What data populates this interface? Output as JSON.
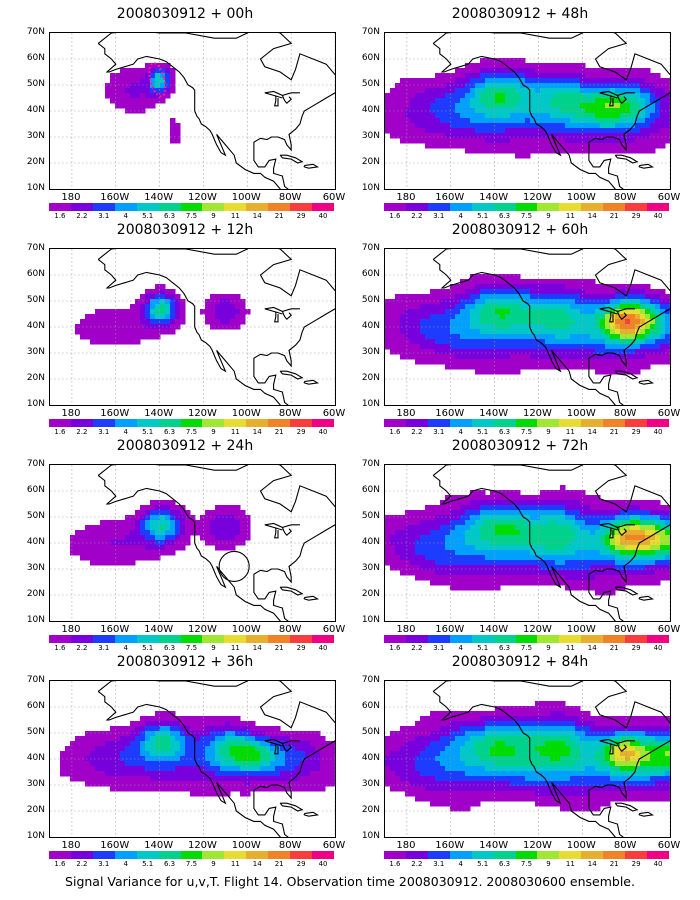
{
  "panels": [
    {
      "title": "2008030912 + 00h",
      "forecast_hour": 0
    },
    {
      "title": "2008030912 + 12h",
      "forecast_hour": 12
    },
    {
      "title": "2008030912 + 24h",
      "forecast_hour": 24
    },
    {
      "title": "2008030912 + 36h",
      "forecast_hour": 36
    },
    {
      "title": "2008030912 + 48h",
      "forecast_hour": 48
    },
    {
      "title": "2008030912 + 60h",
      "forecast_hour": 60
    },
    {
      "title": "2008030912 + 72h",
      "forecast_hour": 72
    },
    {
      "title": "2008030912 + 84h",
      "forecast_hour": 84
    }
  ],
  "lat_labels": [
    "70N",
    "60N",
    "50N",
    "40N",
    "30N",
    "20N",
    "10N"
  ],
  "lon_labels": [
    "180",
    "160W",
    "140W",
    "120W",
    "100W",
    "80W",
    "60W"
  ],
  "lat_range": [
    10,
    70
  ],
  "lon_range": [
    -190,
    -60
  ],
  "colorbar": {
    "labels": [
      "1.6",
      "2.2",
      "3.1",
      "4",
      "5.1",
      "6.3",
      "7.5",
      "9",
      "11",
      "14",
      "21",
      "29",
      "40"
    ],
    "colors": [
      "#a000c8",
      "#7800dc",
      "#1e3cff",
      "#00a0ff",
      "#00c8c8",
      "#00d28c",
      "#00dc00",
      "#a0e632",
      "#e6dc32",
      "#e6af2d",
      "#f08228",
      "#fa3c3c",
      "#f00082"
    ]
  },
  "caption": "Signal Variance for u,v,T. Flight 14. Observation time 2008030912. 2008030600 ensemble."
}
